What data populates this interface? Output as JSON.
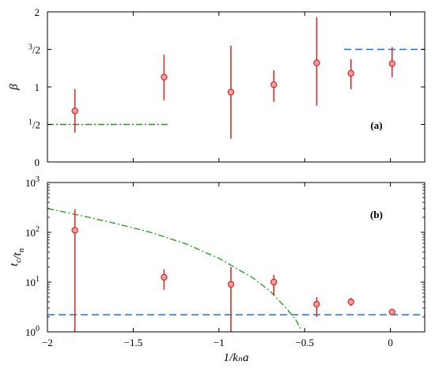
{
  "chart_data": [
    {
      "type": "scatter",
      "panel_label": "(a)",
      "ylabel": "β",
      "xlim": [
        -2,
        0.2
      ],
      "ylim": [
        0,
        2
      ],
      "yticks": [
        {
          "value": 0,
          "label": "0"
        },
        {
          "value": 0.5,
          "label": "1/2"
        },
        {
          "value": 1,
          "label": "1"
        },
        {
          "value": 1.5,
          "label": "3/2"
        },
        {
          "value": 2,
          "label": "2"
        }
      ],
      "points": [
        {
          "x": -1.84,
          "y": 0.68,
          "low": 0.39,
          "high": 0.97
        },
        {
          "x": -1.32,
          "y": 1.13,
          "low": 0.82,
          "high": 1.43
        },
        {
          "x": -0.93,
          "y": 0.93,
          "low": 0.31,
          "high": 1.55
        },
        {
          "x": -0.68,
          "y": 1.03,
          "low": 0.8,
          "high": 1.22
        },
        {
          "x": -0.43,
          "y": 1.32,
          "low": 0.75,
          "high": 1.93
        },
        {
          "x": -0.23,
          "y": 1.18,
          "low": 0.97,
          "high": 1.37
        },
        {
          "x": 0.01,
          "y": 1.31,
          "low": 1.13,
          "high": 1.53
        }
      ],
      "reference_lines": [
        {
          "style": "dashdot",
          "color": "#1f9a1f",
          "y": 0.5,
          "x_from": -2,
          "x_to": -1.3
        },
        {
          "style": "dashed",
          "color": "#1f6fd0",
          "y": 1.5,
          "x_from": -0.27,
          "x_to": 0.2
        }
      ]
    },
    {
      "type": "scatter",
      "panel_label": "(b)",
      "xlabel": "1/kₙa",
      "ylabel": "t_c/t_n",
      "yscale": "log",
      "xlim": [
        -2,
        0.2
      ],
      "ylim": [
        1,
        1000
      ],
      "xticks": [
        {
          "value": -2,
          "label": "−2"
        },
        {
          "value": -1.5,
          "label": "−1.5"
        },
        {
          "value": -1,
          "label": "−1"
        },
        {
          "value": -0.5,
          "label": "−0.5"
        },
        {
          "value": 0,
          "label": "0"
        }
      ],
      "yticks": [
        {
          "value": 1,
          "base": "10",
          "exp": "0"
        },
        {
          "value": 10,
          "base": "10",
          "exp": "1"
        },
        {
          "value": 100,
          "base": "10",
          "exp": "2"
        },
        {
          "value": 1000,
          "base": "10",
          "exp": "3"
        }
      ],
      "points": [
        {
          "x": -1.84,
          "y": 110,
          "low": 1,
          "high": 290
        },
        {
          "x": -1.32,
          "y": 12.5,
          "low": 7,
          "high": 18
        },
        {
          "x": -0.93,
          "y": 9,
          "low": 1,
          "high": 20
        },
        {
          "x": -0.68,
          "y": 10,
          "low": 5.5,
          "high": 14
        },
        {
          "x": -0.43,
          "y": 3.6,
          "low": 2,
          "high": 5
        },
        {
          "x": -0.23,
          "y": 4,
          "low": 3.3,
          "high": 4.8
        },
        {
          "x": 0.01,
          "y": 2.5,
          "low": 2.3,
          "high": 2.7
        }
      ],
      "reference_lines": [
        {
          "style": "dashed",
          "color": "#1f6fd0",
          "y": 2.2,
          "x_from": -2,
          "x_to": 0.2
        },
        {
          "style": "dashdot",
          "color": "#1f9a1f",
          "curve": [
            [
              -2,
              300
            ],
            [
              -1.8,
              215
            ],
            [
              -1.6,
              150
            ],
            [
              -1.4,
              100
            ],
            [
              -1.2,
              60
            ],
            [
              -1.0,
              30
            ],
            [
              -0.8,
              12
            ],
            [
              -0.7,
              6.5
            ],
            [
              -0.6,
              2.8
            ],
            [
              -0.55,
              1.7
            ],
            [
              -0.52,
              1.1
            ]
          ]
        }
      ]
    }
  ],
  "colors": {
    "marker": "#e02020",
    "marker_fill": "#f5a0a0",
    "errorbar": "#e02020",
    "axis": "#000000"
  }
}
